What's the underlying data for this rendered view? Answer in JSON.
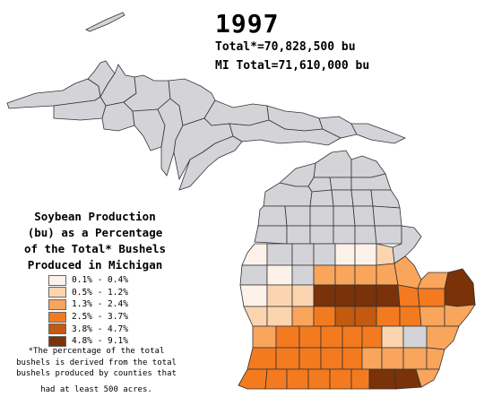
{
  "header": {
    "year": "1997",
    "total": "Total*=70,828,500 bu",
    "mi_total": "MI Total=71,610,000 bu"
  },
  "legend": {
    "title_lines": [
      "Soybean Production",
      "(bu) as a Percentage",
      "of the Total* Bushels",
      "Produced in Michigan"
    ],
    "items": [
      {
        "label": "0.1% - 0.4%",
        "color": "#fdf2ea"
      },
      {
        "label": "0.5% - 1.2%",
        "color": "#fbd5b0"
      },
      {
        "label": "1.3% - 2.4%",
        "color": "#f9a55c"
      },
      {
        "label": "2.5% - 3.7%",
        "color": "#f47a1f"
      },
      {
        "label": "3.8% - 4.7%",
        "color": "#c35a10"
      },
      {
        "label": "4.8% - 9.1%",
        "color": "#7a3208"
      }
    ],
    "no_data_color": "#d4d4d8"
  },
  "footnote": {
    "lines": [
      "*The percentage of the total",
      "bushels is derived from the  total",
      "bushels produced by counties that"
    ],
    "last_line": "had at least 500 acres."
  },
  "map": {
    "land_color": "#d4d4d8",
    "border_color": "#333333"
  }
}
